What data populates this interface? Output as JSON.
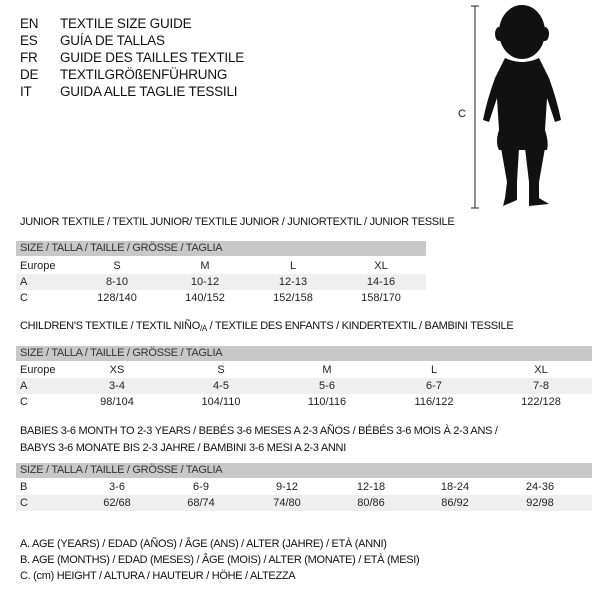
{
  "languages": [
    {
      "code": "EN",
      "title": "TEXTILE SIZE GUIDE"
    },
    {
      "code": "ES",
      "title": "GUÍA DE TALLAS"
    },
    {
      "code": "FR",
      "title": "GUIDE DES TAILLES TEXTILE"
    },
    {
      "code": "DE",
      "title": "TEXTILGRÖßENFÜHRUNG"
    },
    {
      "code": "IT",
      "title": "GUIDA ALLE TAGLIE TESSILI"
    }
  ],
  "figure": {
    "height_label": "C"
  },
  "size_header": "SIZE / TALLA / TAILLE / GRÖSSE / TAGLIA",
  "junior": {
    "title": "JUNIOR TEXTILE / TEXTIL JUNIOR/ TEXTILE JUNIOR / JUNIORTEXTIL / JUNIOR TESSILE",
    "rows": [
      {
        "label": "Europe",
        "values": [
          "S",
          "M",
          "L",
          "XL"
        ]
      },
      {
        "label": "A",
        "values": [
          "8-10",
          "10-12",
          "12-13",
          "14-16"
        ]
      },
      {
        "label": "C",
        "values": [
          "128/140",
          "140/152",
          "152/158",
          "158/170"
        ]
      }
    ]
  },
  "children": {
    "title_pre": "CHILDREN'S TEXTILE / TEXTIL NIÑO",
    "title_sub": "/A",
    "title_post": " / TEXTILE DES ENFANTS / KINDERTEXTIL / BAMBINI TESSILE",
    "rows": [
      {
        "label": "Europe",
        "values": [
          "XS",
          "S",
          "M",
          "L",
          "XL"
        ]
      },
      {
        "label": "A",
        "values": [
          "3-4",
          "4-5",
          "5-6",
          "6-7",
          "7-8"
        ]
      },
      {
        "label": "C",
        "values": [
          "98/104",
          "104/110",
          "110/116",
          "116/122",
          "122/128"
        ]
      }
    ]
  },
  "babies": {
    "title_line1": "BABIES 3-6 MONTH TO 2-3 YEARS / BEBÉS 3-6 MESES A 2-3 AÑOS / BÉBÉS 3-6 MOIS À 2-3 ANS /",
    "title_line2": "BABYS 3-6 MONATE BIS 2-3 JAHRE / BAMBINI 3-6 MESI A 2-3 ANNI",
    "rows": [
      {
        "label": "B",
        "values": [
          "3-6",
          "6-9",
          "9-12",
          "12-18",
          "18-24",
          "24-36"
        ]
      },
      {
        "label": "C",
        "values": [
          "62/68",
          "68/74",
          "74/80",
          "80/86",
          "86/92",
          "92/98"
        ]
      }
    ]
  },
  "legend": [
    "A. AGE (YEARS) / EDAD (AÑOS) / ÂGE (ANS) / ALTER (JAHRE) / ETÀ (ANNI)",
    "B. AGE (MONTHS) / EDAD (MESES) / ÂGE (MOIS) / ALTER (MONATE) / ETÀ (MESI)",
    "C. (cm) HEIGHT / ALTURA / HAUTEUR / HÖHE / ALTEZZA"
  ]
}
